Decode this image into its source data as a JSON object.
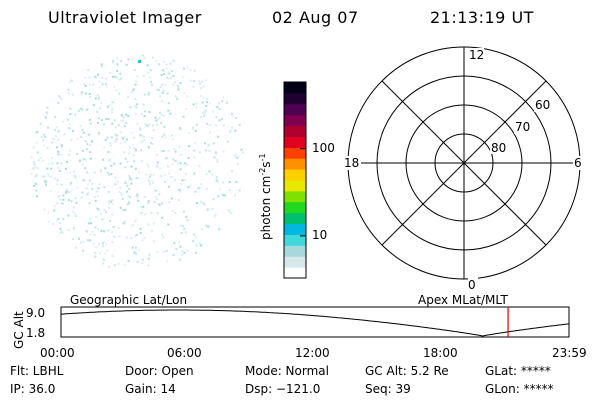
{
  "header": {
    "instrument": "Ultraviolet Imager",
    "date": "02 Aug 07",
    "time": "21:13:19 UT"
  },
  "colorbar": {
    "unit_label": "photon cm",
    "unit_exp1": "-2",
    "unit_mid": "s",
    "unit_exp2": "-1",
    "tick_100": "100",
    "tick_10": "10",
    "colors_bottom_to_top": [
      "#ffffff",
      "#d8e8ea",
      "#a8d8dc",
      "#40d8d8",
      "#00b8e0",
      "#00c070",
      "#20d820",
      "#80e000",
      "#e8e800",
      "#ffd000",
      "#ff9000",
      "#ff4000",
      "#e00020",
      "#b00030",
      "#800050",
      "#500050",
      "#200030",
      "#000018"
    ]
  },
  "polar": {
    "label_top": "12",
    "label_bottom": "0",
    "label_left": "18",
    "label_right": "6",
    "ring_60": "60",
    "ring_70": "70",
    "ring_80": "80"
  },
  "timeline": {
    "axis_label": "GC Alt",
    "ymax": "9.0",
    "ymin": "1.8",
    "left_caption": "Geographic Lat/Lon",
    "right_caption": "Apex MLat/MLT",
    "ticks": [
      "00:00",
      "06:00",
      "12:00",
      "18:00",
      "23:59"
    ],
    "current_time_fraction": 0.88
  },
  "status": {
    "flt": "Flt: LBHL",
    "door": "Door: Open",
    "mode": "Mode: Normal",
    "gcalt": "GC Alt: 5.2 Re",
    "glat": "GLat: *****",
    "ip": "IP: 36.0",
    "gain": "Gain: 14",
    "dsp": "Dsp: −121.0",
    "seq": "Seq: 39",
    "glon": "GLon: *****"
  }
}
